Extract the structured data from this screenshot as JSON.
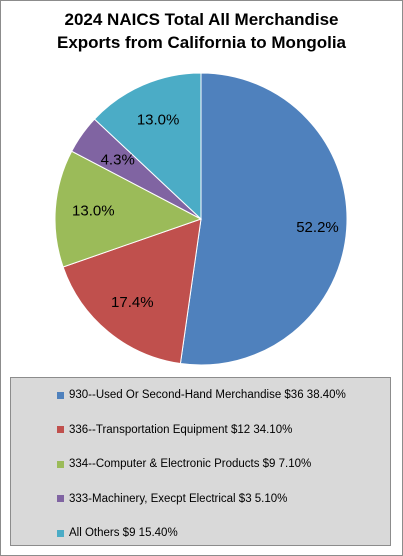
{
  "title_lines": [
    "2024 NAICS Total All Merchandise",
    "Exports from California to Mongolia"
  ],
  "chart_data": {
    "type": "pie",
    "title": "2024 NAICS Total All Merchandise Exports from California to Mongolia",
    "slices": [
      {
        "label": "930--Used Or Second-Hand Merchandise $36 38.40%",
        "value": 52.2,
        "value_label": "52.2%",
        "color": "#4f81bd"
      },
      {
        "label": "336--Transportation Equipment $12 34.10%",
        "value": 17.4,
        "value_label": "17.4%",
        "color": "#c0504d"
      },
      {
        "label": "334--Computer & Electronic Products $9 7.10%",
        "value": 13.0,
        "value_label": "13.0%",
        "color": "#9bbb59"
      },
      {
        "label": "333-Machinery, Execpt Electrical $3 5.10%",
        "value": 4.3,
        "value_label": "4.3%",
        "color": "#8064a2"
      },
      {
        "label": "All Others $9 15.40%",
        "value": 13.0,
        "value_label": "13.0%",
        "color": "#4bacc6"
      }
    ],
    "legend_position": "bottom"
  }
}
